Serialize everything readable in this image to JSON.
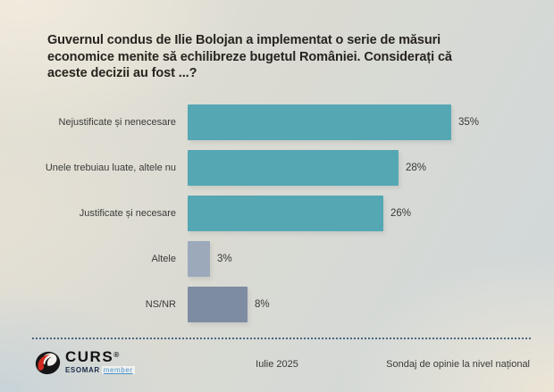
{
  "title_lines": [
    "Guvernul condus de Ilie Bolojan a implementat o serie de măsuri",
    "economice menite să echilibreze bugetul României. Considerați că",
    "aceste decizii au fost ...?"
  ],
  "chart_data": {
    "type": "bar",
    "orientation": "horizontal",
    "title": "Guvernul condus de Ilie Bolojan a implementat o serie de măsuri economice menite să echilibreze bugetul României. Considerați că aceste decizii au fost ...?",
    "categories": [
      "Nejustificate și nenecesare",
      "Unele trebuiau luate, altele nu",
      "Justificate și necesare",
      "Altele",
      "NS/NR"
    ],
    "values": [
      35,
      28,
      26,
      3,
      8
    ],
    "value_labels": [
      "35%",
      "28%",
      "26%",
      "3%",
      "8%"
    ],
    "bar_colors": [
      "#55a7b4",
      "#55a7b4",
      "#55a7b4",
      "#9ba9bb",
      "#7e8ca1"
    ],
    "xlabel": "",
    "ylabel": "",
    "xlim": [
      0,
      37
    ],
    "grid": false,
    "legend": false
  },
  "footer": {
    "logo_text": "CURS",
    "logo_reg": "®",
    "logo_sub_bold": "ESOMAR",
    "logo_sub_light": "member",
    "date": "Iulie 2025",
    "note": "Sondaj de opinie la nivel național"
  },
  "colors": {
    "accent_teal": "#55a7b4",
    "slate_light": "#9ba9bb",
    "slate_dark": "#7e8ca1",
    "divider_navy": "#33536f",
    "logo_red": "#cf2a20",
    "esomar_navy": "#1c2b4a",
    "member_blue": "#4a90c7",
    "text_dark": "#27241f"
  }
}
